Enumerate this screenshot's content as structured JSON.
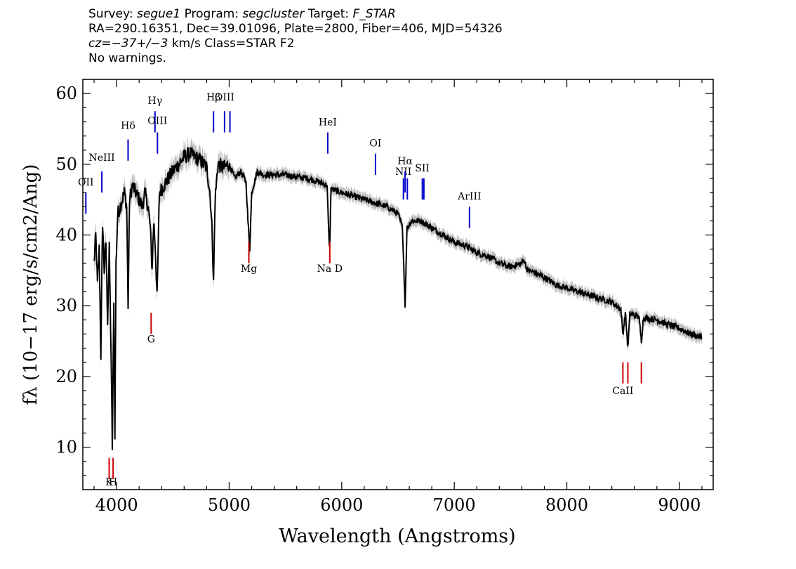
{
  "header": {
    "line1": {
      "survey_label": "Survey: ",
      "survey": "segue1",
      "program_label": " Program: ",
      "program": "segcluster",
      "target_label": " Target: ",
      "target": "F_STAR"
    },
    "line2": "RA=290.16351, Dec=39.01096, Plate=2800, Fiber=406, MJD=54326",
    "line3": {
      "cz": "cz=",
      "cz_value": "−37+/−3",
      "rest": " km/s Class=STAR F2"
    },
    "line4": "No warnings."
  },
  "chart_data": {
    "type": "line",
    "title": "",
    "xlabel": "Wavelength (Angstroms)",
    "ylabel": "fλ (10−17 erg/s/cm2/Ang)",
    "xlim": [
      3700,
      9300
    ],
    "ylim": [
      4,
      62
    ],
    "x_ticks": [
      4000,
      5000,
      6000,
      7000,
      8000,
      9000
    ],
    "y_ticks": [
      10,
      20,
      30,
      40,
      50,
      60
    ],
    "grid": false,
    "series": [
      {
        "color": "#000000",
        "error_band_color": "#bdbdbd",
        "points": [
          [
            3800,
            36
          ],
          [
            3815,
            40
          ],
          [
            3830,
            33
          ],
          [
            3845,
            38
          ],
          [
            3860,
            23
          ],
          [
            3875,
            42
          ],
          [
            3890,
            35
          ],
          [
            3905,
            39
          ],
          [
            3920,
            28
          ],
          [
            3935,
            38
          ],
          [
            3950,
            24
          ],
          [
            3962,
            10
          ],
          [
            3975,
            30
          ],
          [
            3985,
            12
          ],
          [
            3995,
            36
          ],
          [
            4010,
            43
          ],
          [
            4030,
            44
          ],
          [
            4050,
            45
          ],
          [
            4070,
            46
          ],
          [
            4090,
            44
          ],
          [
            4102,
            30
          ],
          [
            4115,
            45
          ],
          [
            4140,
            47
          ],
          [
            4170,
            46
          ],
          [
            4200,
            45
          ],
          [
            4230,
            44
          ],
          [
            4250,
            46
          ],
          [
            4280,
            44
          ],
          [
            4300,
            41
          ],
          [
            4315,
            35
          ],
          [
            4330,
            42
          ],
          [
            4345,
            38
          ],
          [
            4360,
            31
          ],
          [
            4380,
            46
          ],
          [
            4420,
            47
          ],
          [
            4460,
            48
          ],
          [
            4500,
            49
          ],
          [
            4550,
            50
          ],
          [
            4600,
            51
          ],
          [
            4650,
            51.5
          ],
          [
            4700,
            51
          ],
          [
            4750,
            50.5
          ],
          [
            4800,
            49.5
          ],
          [
            4830,
            46
          ],
          [
            4850,
            40
          ],
          [
            4861,
            33
          ],
          [
            4875,
            45
          ],
          [
            4900,
            50
          ],
          [
            4950,
            49.5
          ],
          [
            5000,
            50
          ],
          [
            5050,
            48
          ],
          [
            5100,
            49
          ],
          [
            5150,
            47.5
          ],
          [
            5167,
            42
          ],
          [
            5183,
            38
          ],
          [
            5200,
            46
          ],
          [
            5250,
            49
          ],
          [
            5300,
            48.5
          ],
          [
            5400,
            48.5
          ],
          [
            5500,
            48.5
          ],
          [
            5600,
            48.2
          ],
          [
            5700,
            48
          ],
          [
            5800,
            47.5
          ],
          [
            5870,
            47
          ],
          [
            5885,
            40
          ],
          [
            5893,
            38
          ],
          [
            5905,
            46.5
          ],
          [
            6000,
            46
          ],
          [
            6100,
            45.5
          ],
          [
            6200,
            45
          ],
          [
            6300,
            44.5
          ],
          [
            6400,
            44
          ],
          [
            6500,
            43
          ],
          [
            6540,
            41
          ],
          [
            6563,
            30
          ],
          [
            6580,
            41
          ],
          [
            6620,
            42
          ],
          [
            6700,
            42
          ],
          [
            6800,
            41
          ],
          [
            6900,
            40
          ],
          [
            7000,
            39
          ],
          [
            7100,
            38.5
          ],
          [
            7200,
            37.5
          ],
          [
            7300,
            37
          ],
          [
            7400,
            36
          ],
          [
            7500,
            35.5
          ],
          [
            7600,
            36
          ],
          [
            7620,
            36.5
          ],
          [
            7650,
            35
          ],
          [
            7700,
            34.8
          ],
          [
            7800,
            34
          ],
          [
            7900,
            33
          ],
          [
            8000,
            32.5
          ],
          [
            8100,
            32
          ],
          [
            8200,
            31.5
          ],
          [
            8300,
            31
          ],
          [
            8400,
            30.5
          ],
          [
            8480,
            29.5
          ],
          [
            8498,
            26
          ],
          [
            8520,
            29
          ],
          [
            8542,
            24
          ],
          [
            8560,
            28.8
          ],
          [
            8640,
            28.5
          ],
          [
            8662,
            25
          ],
          [
            8680,
            28.3
          ],
          [
            8800,
            28
          ],
          [
            8900,
            27.3
          ],
          [
            9000,
            26.8
          ],
          [
            9100,
            26
          ],
          [
            9200,
            25.5
          ]
        ]
      }
    ],
    "emission_lines": [
      {
        "label": "OII",
        "wavelength": 3727,
        "y1": 43,
        "y2": 46,
        "label_y": 47
      },
      {
        "label": "NeIII",
        "wavelength": 3869,
        "y1": 46,
        "y2": 49,
        "label_y": 50.5
      },
      {
        "label": "Hδ",
        "wavelength": 4102,
        "y1": 50.5,
        "y2": 53.5,
        "label_y": 55
      },
      {
        "label": "Hγ",
        "wavelength": 4341,
        "y1": 54.5,
        "y2": 57.5,
        "label_y": 58.5
      },
      {
        "label": "OIII",
        "wavelength": 4363,
        "y1": 51.5,
        "y2": 54.5,
        "label_y": 55.7
      },
      {
        "label": "Hβ",
        "wavelength": 4861,
        "y1": 54.5,
        "y2": 57.5,
        "label_y": 59
      },
      {
        "label": "OIII",
        "wavelength": 4959,
        "y1": 54.5,
        "y2": 57.5,
        "label_y": 59
      },
      {
        "label": "OIII",
        "wavelength": 5007,
        "y1": 54.5,
        "y2": 57.5,
        "label_y": 59
      },
      {
        "label": "HeI",
        "wavelength": 5876,
        "y1": 51.5,
        "y2": 54.5,
        "label_y": 55.5
      },
      {
        "label": "OI",
        "wavelength": 6300,
        "y1": 48.5,
        "y2": 51.5,
        "label_y": 52.5
      },
      {
        "label": "NII",
        "wavelength": 6548,
        "y1": 45,
        "y2": 48,
        "label_y": 48.5
      },
      {
        "label": "Hα",
        "wavelength": 6563,
        "y1": 46,
        "y2": 49,
        "label_y": 50
      },
      {
        "label": "NII",
        "wavelength": 6583,
        "y1": 45,
        "y2": 48,
        "label_y": 48.5
      },
      {
        "label": "SII",
        "wavelength": 6716,
        "y1": 45,
        "y2": 48,
        "label_y": 49
      },
      {
        "label": "SII",
        "wavelength": 6730,
        "y1": 45,
        "y2": 48,
        "label_y": 49
      },
      {
        "label": "ArIII",
        "wavelength": 7135,
        "y1": 41,
        "y2": 44,
        "label_y": 45
      }
    ],
    "absorption_lines": [
      {
        "label": "K",
        "wavelength": 3934,
        "y1": 5.5,
        "y2": 8.5,
        "label_y": 4.6
      },
      {
        "label": "H",
        "wavelength": 3969,
        "y1": 5.5,
        "y2": 8.5,
        "label_y": 4.6
      },
      {
        "label": "G",
        "wavelength": 4307,
        "y1": 26,
        "y2": 29,
        "label_y": 24.8
      },
      {
        "label": "Mg",
        "wavelength": 5175,
        "y1": 36,
        "y2": 39,
        "label_y": 34.8
      },
      {
        "label": "Na D",
        "wavelength": 5894,
        "y1": 36,
        "y2": 39,
        "label_y": 34.8
      },
      {
        "label": "CaII",
        "wavelength": 8498,
        "y1": 19,
        "y2": 22,
        "label_y": 17.5
      },
      {
        "label": "CaII",
        "wavelength": 8542,
        "y1": 19,
        "y2": 22,
        "label_y": 17.5
      },
      {
        "label": "CaII",
        "wavelength": 8662,
        "y1": 19,
        "y2": 22,
        "label_y": 17.5
      }
    ],
    "emission_color": "#0000cc",
    "absorption_color": "#cc0000"
  }
}
